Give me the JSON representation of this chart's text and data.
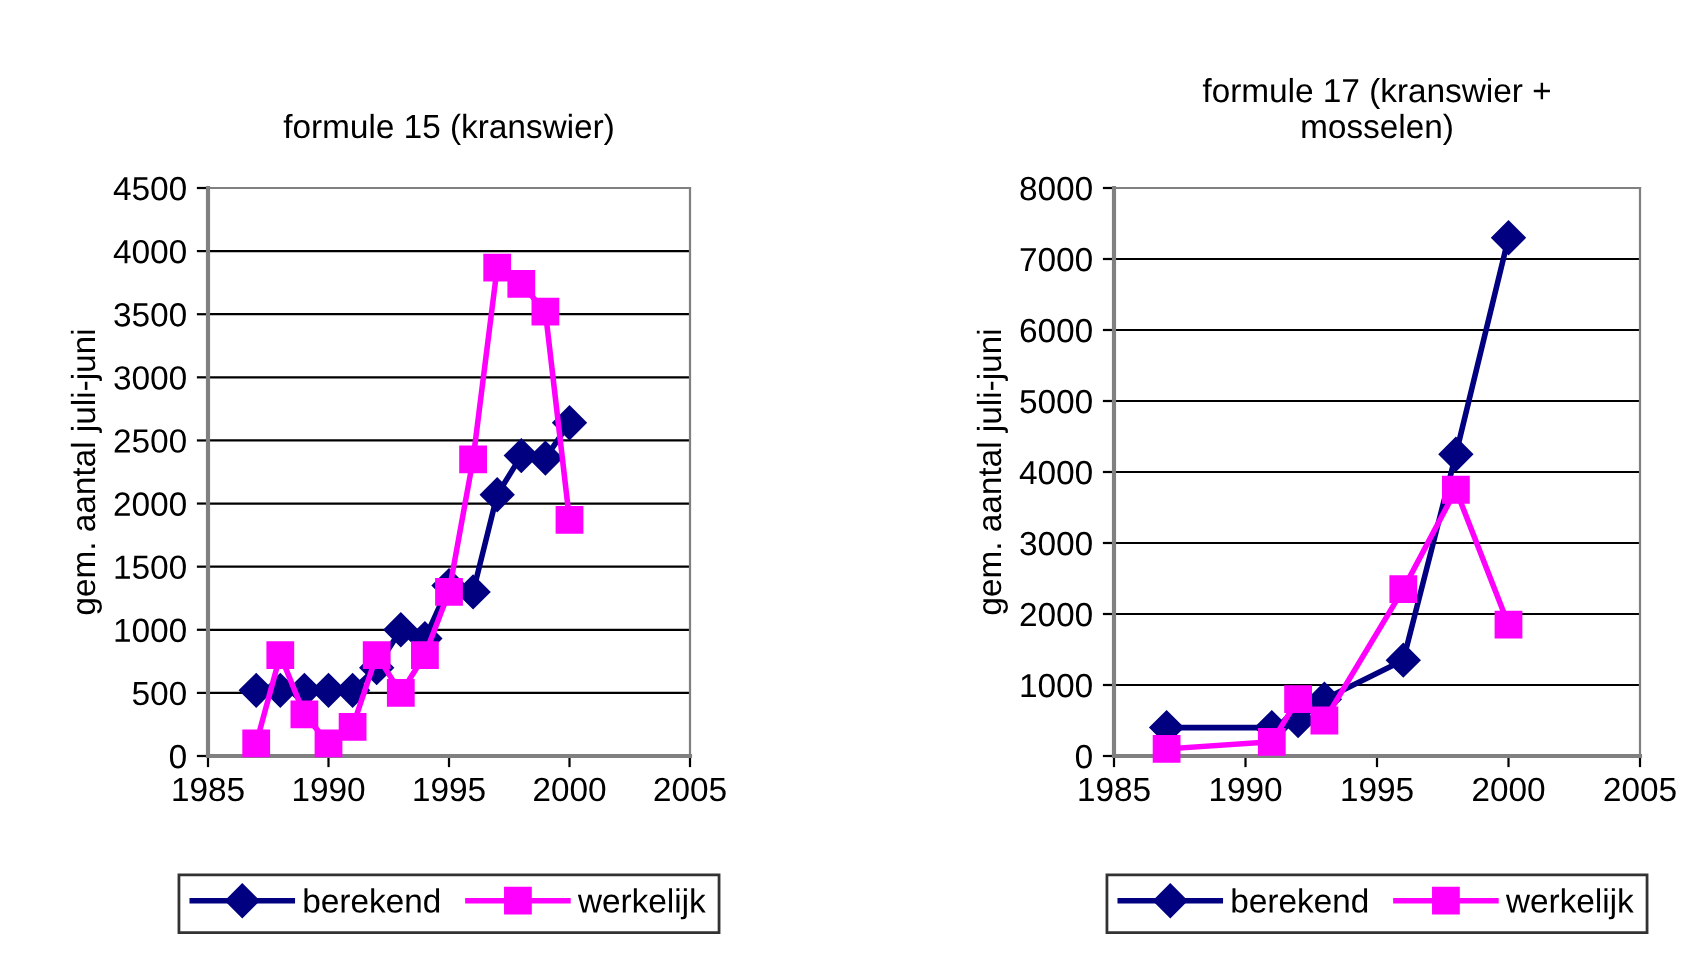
{
  "chart_data": [
    {
      "type": "line",
      "title": "formule 15 (kranswier)",
      "ylabel": "gem. aantal juli-juni",
      "xlim": [
        1985,
        2005
      ],
      "xticks": [
        1985,
        1990,
        1995,
        2000,
        2005
      ],
      "ylim": [
        0,
        4500
      ],
      "yticks": [
        0,
        500,
        1000,
        1500,
        2000,
        2500,
        3000,
        3500,
        4000,
        4500
      ],
      "grid": "y",
      "legend": "bottom",
      "series": [
        {
          "name": "berekend",
          "color": "#000080",
          "marker": "diamond",
          "x": [
            1987,
            1988,
            1989,
            1990,
            1991,
            1992,
            1993,
            1994,
            1995,
            1996,
            1997,
            1998,
            1999,
            2000
          ],
          "values": [
            520,
            520,
            520,
            520,
            520,
            700,
            1000,
            930,
            1350,
            1300,
            2070,
            2380,
            2360,
            2640
          ]
        },
        {
          "name": "werkelijk",
          "color": "#ff00ff",
          "marker": "square",
          "x": [
            1987,
            1988,
            1989,
            1990,
            1991,
            1992,
            1993,
            1994,
            1995,
            1996,
            1997,
            1998,
            1999,
            2000
          ],
          "values": [
            100,
            800,
            330,
            100,
            230,
            800,
            500,
            800,
            1300,
            2350,
            3870,
            3740,
            3520,
            1870
          ]
        }
      ]
    },
    {
      "type": "line",
      "title": "formule 17 (kranswier + mosselen)",
      "ylabel": "gem. aantal juli-juni",
      "xlim": [
        1985,
        2005
      ],
      "xticks": [
        1985,
        1990,
        1995,
        2000,
        2005
      ],
      "ylim": [
        0,
        8000
      ],
      "yticks": [
        0,
        1000,
        2000,
        3000,
        4000,
        5000,
        6000,
        7000,
        8000
      ],
      "grid": "y",
      "legend": "bottom",
      "series": [
        {
          "name": "berekend",
          "color": "#000080",
          "marker": "diamond",
          "x": [
            1987,
            1991,
            1992,
            1993,
            1996,
            1998,
            2000
          ],
          "values": [
            400,
            400,
            500,
            800,
            1350,
            4250,
            7300
          ]
        },
        {
          "name": "werkelijk",
          "color": "#ff00ff",
          "marker": "square",
          "x": [
            1987,
            1991,
            1992,
            1993,
            1996,
            1998,
            2000
          ],
          "values": [
            100,
            200,
            800,
            500,
            2350,
            3750,
            1850
          ]
        }
      ]
    }
  ]
}
